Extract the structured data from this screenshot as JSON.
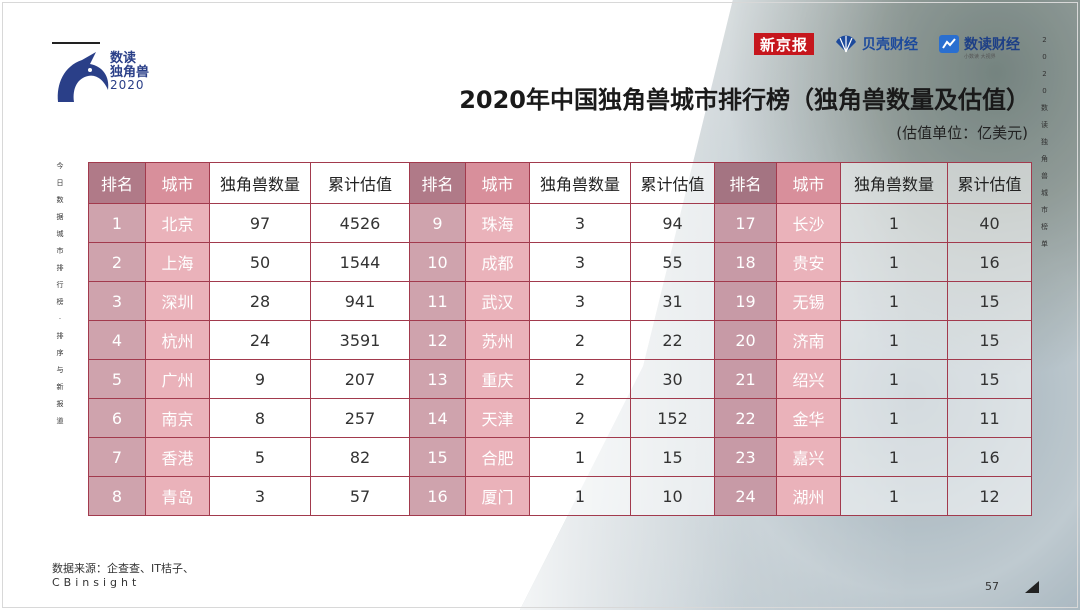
{
  "logo": {
    "line1": "数读",
    "line2": "独角兽",
    "line3": "2020"
  },
  "media": {
    "xinjingbao": "新京报",
    "beike": "贝壳财经",
    "shudu": "数读财经",
    "shudu_sub": "小数读 大视界"
  },
  "title": "2020年中国独角兽城市排行榜（独角兽数量及估值）",
  "unit": "(估值单位：亿美元)",
  "left_vertical_text": "今日数据城市排行榜·排序与新报道",
  "right_vertical_text": "2020数读独角兽城市榜单",
  "colors": {
    "border": "#a23a4d",
    "rank_header": "#b07a88",
    "city_header": "#d88f9b",
    "rank_cell": "#cfa3ad",
    "city_cell": "#eab2ba"
  },
  "table": {
    "headers": [
      "排名",
      "城市",
      "独角兽数量",
      "累计估值",
      "排名",
      "城市",
      "独角兽数量",
      "累计估值",
      "排名",
      "城市",
      "独角兽数量",
      "累计估值"
    ],
    "rows": [
      [
        "1",
        "北京",
        "97",
        "4526",
        "9",
        "珠海",
        "3",
        "94",
        "17",
        "长沙",
        "1",
        "40"
      ],
      [
        "2",
        "上海",
        "50",
        "1544",
        "10",
        "成都",
        "3",
        "55",
        "18",
        "贵安",
        "1",
        "16"
      ],
      [
        "3",
        "深圳",
        "28",
        "941",
        "11",
        "武汉",
        "3",
        "31",
        "19",
        "无锡",
        "1",
        "15"
      ],
      [
        "4",
        "杭州",
        "24",
        "3591",
        "12",
        "苏州",
        "2",
        "22",
        "20",
        "济南",
        "1",
        "15"
      ],
      [
        "5",
        "广州",
        "9",
        "207",
        "13",
        "重庆",
        "2",
        "30",
        "21",
        "绍兴",
        "1",
        "15"
      ],
      [
        "6",
        "南京",
        "8",
        "257",
        "14",
        "天津",
        "2",
        "152",
        "22",
        "金华",
        "1",
        "11"
      ],
      [
        "7",
        "香港",
        "5",
        "82",
        "15",
        "合肥",
        "1",
        "15",
        "23",
        "嘉兴",
        "1",
        "16"
      ],
      [
        "8",
        "青岛",
        "3",
        "57",
        "16",
        "厦门",
        "1",
        "10",
        "24",
        "湖州",
        "1",
        "12"
      ]
    ]
  },
  "source": {
    "line1": "数据来源：企查查、IT桔子、",
    "line2": "CBinsight"
  },
  "page_number": "57"
}
